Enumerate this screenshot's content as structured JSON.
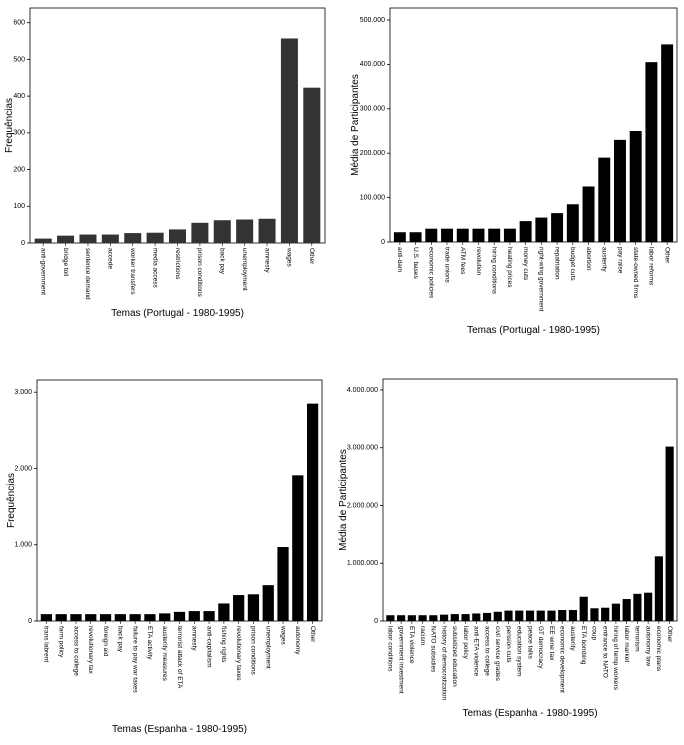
{
  "chart_data": [
    {
      "type": "bar",
      "xlabel": "Temas (Portugal - 1980-1995)",
      "ylabel": "Frequências",
      "color": "#333333",
      "categories": [
        "anti-government",
        "bridge toll",
        "sentence demand",
        "accede",
        "worker transfers",
        "media access",
        "restrictions",
        "prison conditions",
        "back pay",
        "unemployment",
        "amnesty",
        "wages",
        "Other"
      ],
      "values": [
        12,
        20,
        23,
        23,
        27,
        28,
        37,
        55,
        62,
        64,
        66,
        557,
        423
      ],
      "ylim": [
        0,
        640
      ],
      "yticks": [
        0,
        100,
        200,
        300,
        400,
        500,
        600
      ]
    },
    {
      "type": "bar",
      "xlabel": "Temas (Portugal - 1980-1995)",
      "ylabel": "Média de Participantes",
      "color": "#000000",
      "categories": [
        "anti-dam",
        "U.S. bases",
        "economic policies",
        "trade unions",
        "ATM fees",
        "revolution",
        "hiring conditions",
        "heating prices",
        "money cuts",
        "right-wing government",
        "repatriation",
        "budget cuts",
        "abortion",
        "austerity",
        "pay raise",
        "state-owned firms",
        "labor reforms",
        "Other"
      ],
      "values": [
        22000,
        22000,
        30000,
        30000,
        30000,
        30000,
        30000,
        30000,
        47000,
        55000,
        65000,
        85000,
        125000,
        190000,
        230000,
        250000,
        405000,
        445000
      ],
      "ylim": [
        0,
        527000
      ],
      "yticks": [
        {
          "value": 0,
          "label": "0"
        },
        {
          "value": 100000,
          "label": "100.000"
        },
        {
          "value": 200000,
          "label": "200.000"
        },
        {
          "value": 300000,
          "label": "300.000"
        },
        {
          "value": 400000,
          "label": "400.000"
        },
        {
          "value": 500000,
          "label": "500.000"
        }
      ]
    },
    {
      "type": "bar",
      "xlabel": "Temas (Espanha - 1980-1995)",
      "ylabel": "Frequências",
      "color": "#000000",
      "categories": [
        "trans labrent",
        "farm policy",
        "access to college",
        "revolutionary tax",
        "foreign aid",
        "back pay",
        "failure to pay war taxes",
        "ETA activity",
        "austerity measures",
        "terrorist attack of ETA",
        "amnesty",
        "anti-capitalism",
        "fishing rights",
        "revolutionary taxes",
        "prison conditions",
        "unemployment",
        "wages",
        "autonomy",
        "Other"
      ],
      "values": [
        90,
        90,
        90,
        90,
        90,
        90,
        90,
        90,
        100,
        120,
        130,
        130,
        230,
        340,
        350,
        470,
        970,
        1910,
        2850
      ],
      "ylim": [
        0,
        3160
      ],
      "yticks": [
        {
          "value": 0,
          "label": "0"
        },
        {
          "value": 1000,
          "label": "1.000"
        },
        {
          "value": 2000,
          "label": "2.000"
        },
        {
          "value": 3000,
          "label": "3.000"
        }
      ]
    },
    {
      "type": "bar",
      "xlabel": "Temas (Espanha - 1980-1995)",
      "ylabel": "Média de Participantes",
      "color": "#000000",
      "categories": [
        "labor conditions",
        "government investment",
        "ETA violence",
        "racism",
        "NATO subsidies",
        "history of democratization",
        "subsidized education",
        "labor policy",
        "anti-ETA violence",
        "access to college",
        "civil service grades",
        "pension cuts",
        "education system",
        "peace talks",
        "GT democracy",
        "EE wine tax",
        "economic development",
        "austerity",
        "ETA bombing",
        "coup",
        "entrance to NATO",
        "hiring of temp workers",
        "labor market",
        "terrorism",
        "autonomy law",
        "economic plans",
        "Other"
      ],
      "values": [
        100000,
        100000,
        100000,
        100000,
        100000,
        110000,
        120000,
        120000,
        130000,
        140000,
        160000,
        180000,
        180000,
        180000,
        180000,
        180000,
        190000,
        190000,
        420000,
        220000,
        230000,
        300000,
        380000,
        470000,
        490000,
        1120000,
        3020000
      ],
      "ylim": [
        0,
        4190000
      ],
      "yticks": [
        {
          "value": 0,
          "label": "0"
        },
        {
          "value": 1000000,
          "label": "1.000.000"
        },
        {
          "value": 2000000,
          "label": "2.000.000"
        },
        {
          "value": 3000000,
          "label": "3.000.000"
        },
        {
          "value": 4000000,
          "label": "4.000.000"
        }
      ]
    }
  ]
}
